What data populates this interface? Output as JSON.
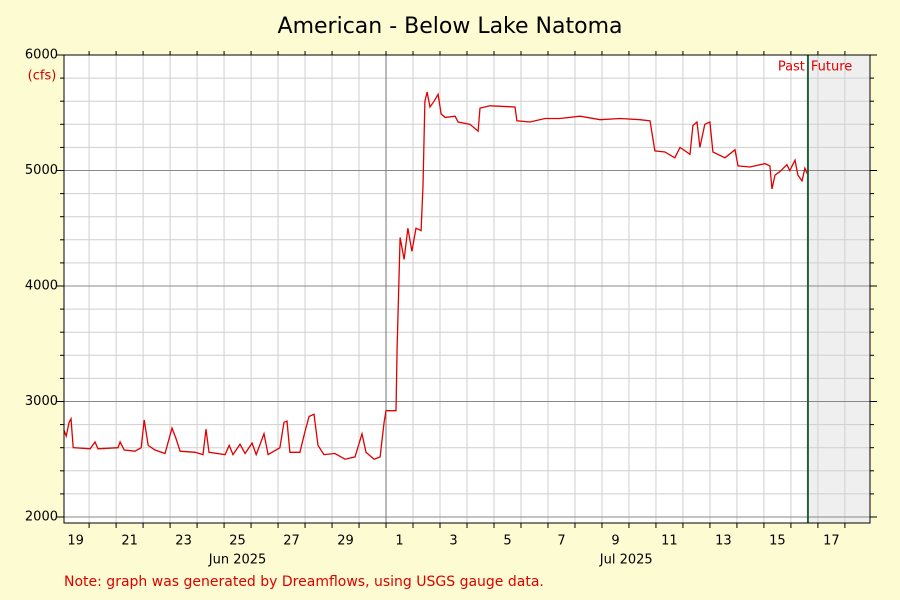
{
  "chart_data": {
    "type": "line",
    "title": "American - Below Lake Natoma",
    "y_unit_label": "(cfs)",
    "note": "Note: graph was generated by Dreamflows, using USGS gauge data.",
    "past_label": "Past",
    "future_label": "Future",
    "now": 46.63,
    "color": "#e00000",
    "now_color": "#1f5f3f",
    "future_color": "#efefef",
    "xlim": [
      19.07,
      48.93
    ],
    "xticks": [
      {
        "value": 19.5,
        "label": "19"
      },
      {
        "value": 21.5,
        "label": "21"
      },
      {
        "value": 23.5,
        "label": "23"
      },
      {
        "value": 25.5,
        "label": "25"
      },
      {
        "value": 27.5,
        "label": "27"
      },
      {
        "value": 29.5,
        "label": "29"
      },
      {
        "value": 31.5,
        "label": "1"
      },
      {
        "value": 33.5,
        "label": "3"
      },
      {
        "value": 35.5,
        "label": "5"
      },
      {
        "value": 37.5,
        "label": "7"
      },
      {
        "value": 39.5,
        "label": "9"
      },
      {
        "value": 41.5,
        "label": "11"
      },
      {
        "value": 43.5,
        "label": "13"
      },
      {
        "value": 45.5,
        "label": "15"
      },
      {
        "value": 47.5,
        "label": "17"
      }
    ],
    "month_labels": [
      {
        "value": 25.5,
        "label": "Jun 2025"
      },
      {
        "value": 39.9,
        "label": "Jul 2025"
      }
    ],
    "month_boundary": 31,
    "xminor": [
      20,
      21,
      22,
      23,
      24,
      25,
      26,
      27,
      28,
      29,
      30,
      31,
      32,
      33,
      34,
      35,
      36,
      37,
      38,
      39,
      40,
      41,
      42,
      43,
      44,
      45,
      46,
      47,
      48
    ],
    "ylim": [
      1948,
      6000
    ],
    "yticks": [
      2000,
      3000,
      4000,
      5000,
      6000
    ],
    "yminor": [
      2200,
      2400,
      2600,
      2800,
      3200,
      3400,
      3600,
      3800,
      4200,
      4400,
      4600,
      4800,
      5200,
      5400,
      5600,
      5800
    ],
    "x": [
      19.07,
      19.15,
      19.26,
      19.33,
      19.41,
      20.04,
      20.22,
      20.33,
      21.07,
      21.15,
      21.3,
      21.7,
      21.93,
      22.04,
      22.19,
      22.44,
      22.81,
      23.07,
      23.22,
      23.37,
      23.93,
      24.22,
      24.33,
      24.44,
      25.04,
      25.19,
      25.33,
      25.59,
      25.78,
      26.04,
      26.19,
      26.48,
      26.63,
      27.07,
      27.22,
      27.33,
      27.44,
      27.81,
      28.0,
      28.15,
      28.33,
      28.48,
      28.7,
      29.11,
      29.48,
      29.85,
      30.11,
      30.26,
      30.56,
      30.78,
      30.93,
      31.0,
      31.37,
      31.41,
      31.52,
      31.67,
      31.81,
      31.96,
      32.11,
      32.3,
      32.37,
      32.44,
      32.52,
      32.63,
      32.78,
      32.93,
      33.04,
      33.19,
      33.56,
      33.67,
      34.11,
      34.41,
      34.48,
      34.85,
      35.78,
      35.85,
      36.33,
      36.89,
      37.44,
      38.19,
      38.93,
      39.67,
      40.41,
      40.78,
      40.96,
      41.33,
      41.7,
      41.89,
      42.26,
      42.37,
      42.52,
      42.63,
      42.81,
      43.0,
      43.11,
      43.56,
      43.93,
      44.04,
      44.48,
      45.04,
      45.22,
      45.3,
      45.41,
      45.59,
      45.85,
      45.96,
      46.15,
      46.26,
      46.41,
      46.52,
      46.63
    ],
    "series": [
      {
        "name": "flow",
        "color": "#e00000",
        "values": [
          2750,
          2700,
          2820,
          2850,
          2600,
          2590,
          2650,
          2590,
          2600,
          2650,
          2580,
          2570,
          2600,
          2840,
          2620,
          2580,
          2550,
          2770,
          2680,
          2570,
          2560,
          2540,
          2760,
          2560,
          2540,
          2620,
          2540,
          2630,
          2550,
          2640,
          2540,
          2720,
          2540,
          2600,
          2820,
          2830,
          2560,
          2560,
          2740,
          2870,
          2890,
          2620,
          2540,
          2550,
          2500,
          2520,
          2720,
          2560,
          2500,
          2520,
          2820,
          2920,
          2920,
          3460,
          4420,
          4230,
          4500,
          4300,
          4500,
          4480,
          4870,
          5600,
          5680,
          5550,
          5600,
          5660,
          5490,
          5460,
          5470,
          5420,
          5400,
          5340,
          5540,
          5560,
          5550,
          5430,
          5420,
          5450,
          5450,
          5470,
          5440,
          5450,
          5440,
          5430,
          5170,
          5160,
          5110,
          5200,
          5140,
          5390,
          5420,
          5200,
          5400,
          5420,
          5160,
          5110,
          5180,
          5040,
          5030,
          5060,
          5040,
          4840,
          4960,
          4990,
          5050,
          5000,
          5090,
          4960,
          4910,
          5020,
          4960
        ]
      }
    ]
  }
}
